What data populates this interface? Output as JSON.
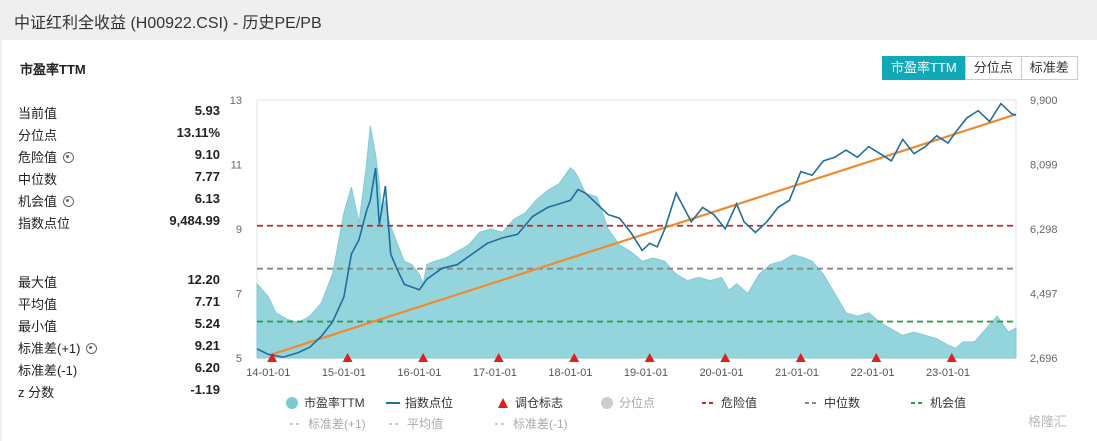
{
  "page": {
    "title": "中证红利全收益 (H00922.CSI) - 历史PE/PB"
  },
  "section": {
    "title": "市盈率TTM"
  },
  "toggle": {
    "pe": "市盈率TTM",
    "percentile": "分位点",
    "std": "标准差"
  },
  "stats_top": [
    {
      "label": "当前值",
      "value": "5.93",
      "gear": false
    },
    {
      "label": "分位点",
      "value": "13.11%",
      "gear": false
    },
    {
      "label": "危险值",
      "value": "9.10",
      "gear": true
    },
    {
      "label": "中位数",
      "value": "7.77",
      "gear": false
    },
    {
      "label": "机会值",
      "value": "6.13",
      "gear": true
    },
    {
      "label": "指数点位",
      "value": "9,484.99",
      "gear": false
    }
  ],
  "stats_bottom": [
    {
      "label": "最大值",
      "value": "12.20",
      "gear": false
    },
    {
      "label": "平均值",
      "value": "7.71",
      "gear": false
    },
    {
      "label": "最小值",
      "value": "5.24",
      "gear": false
    },
    {
      "label": "标准差(+1)",
      "value": "9.21",
      "gear": true
    },
    {
      "label": "标准差(-1)",
      "value": "6.20",
      "gear": false
    },
    {
      "label": "z 分数",
      "value": "-1.19",
      "gear": false
    }
  ],
  "watermark": "格隆汇",
  "chart_data": {
    "type": "area",
    "x_ticks": [
      "14-01-01",
      "15-01-01",
      "16-01-01",
      "17-01-01",
      "18-01-01",
      "19-01-01",
      "20-01-01",
      "21-01-01",
      "22-01-01",
      "23-01-01"
    ],
    "y_left": {
      "ticks": [
        "5",
        "7",
        "9",
        "11",
        "13"
      ],
      "range": [
        5,
        13
      ]
    },
    "y_right": {
      "ticks": [
        "2,696",
        "4,497",
        "6,298",
        "8,099",
        "9,900"
      ],
      "range": [
        2696,
        9900
      ]
    },
    "x_range": [
      2013.85,
      2023.9
    ],
    "lines": {
      "danger": 9.1,
      "median": 7.77,
      "opportunity": 6.13
    },
    "colors": {
      "pe_area": "#8fd3dc",
      "index_line": "#1f6e9e",
      "trend_line": "#f08a30",
      "danger": "#c0282a",
      "median": "#888888",
      "opportunity": "#2e9e4e",
      "marker": "#e02020"
    },
    "pe_series": {
      "name": "市盈率TTM",
      "x": [
        2013.85,
        2014.0,
        2014.1,
        2014.25,
        2014.4,
        2014.55,
        2014.7,
        2014.85,
        2015.0,
        2015.1,
        2015.2,
        2015.3,
        2015.35,
        2015.42,
        2015.47,
        2015.5,
        2015.55,
        2015.6,
        2015.7,
        2015.8,
        2015.9,
        2016.0,
        2016.05,
        2016.1,
        2016.2,
        2016.35,
        2016.5,
        2016.65,
        2016.8,
        2016.95,
        2017.1,
        2017.25,
        2017.4,
        2017.55,
        2017.7,
        2017.85,
        2018.0,
        2018.05,
        2018.1,
        2018.2,
        2018.35,
        2018.5,
        2018.65,
        2018.8,
        2018.95,
        2019.1,
        2019.25,
        2019.4,
        2019.55,
        2019.7,
        2019.85,
        2020.0,
        2020.1,
        2020.2,
        2020.35,
        2020.5,
        2020.65,
        2020.8,
        2020.95,
        2021.1,
        2021.2,
        2021.35,
        2021.5,
        2021.65,
        2021.8,
        2021.95,
        2022.1,
        2022.25,
        2022.4,
        2022.55,
        2022.7,
        2022.85,
        2023.0,
        2023.1,
        2023.2,
        2023.35,
        2023.5,
        2023.65,
        2023.8,
        2023.9
      ],
      "y": [
        7.3,
        6.9,
        6.4,
        6.2,
        6.1,
        6.3,
        6.7,
        7.6,
        9.5,
        10.3,
        9.2,
        11.0,
        12.2,
        11.3,
        10.4,
        9.5,
        9.9,
        9.2,
        8.6,
        8.0,
        7.9,
        7.6,
        7.3,
        7.9,
        8.0,
        8.1,
        8.3,
        8.5,
        8.9,
        9.0,
        8.9,
        9.3,
        9.5,
        9.9,
        10.2,
        10.4,
        10.9,
        10.8,
        10.6,
        10.1,
        10.0,
        9.0,
        8.5,
        8.3,
        8.0,
        8.1,
        8.0,
        7.6,
        7.4,
        7.5,
        7.4,
        7.5,
        7.1,
        7.3,
        7.0,
        7.6,
        7.9,
        8.0,
        8.2,
        8.1,
        8.0,
        7.6,
        7.0,
        6.4,
        6.3,
        6.4,
        6.1,
        5.9,
        5.7,
        5.8,
        5.7,
        5.6,
        5.4,
        5.3,
        5.5,
        5.5,
        5.9,
        6.3,
        5.8,
        5.93
      ]
    },
    "index_series": {
      "name": "指数点位",
      "x": [
        2013.85,
        2014.0,
        2014.2,
        2014.4,
        2014.55,
        2014.7,
        2014.85,
        2015.0,
        2015.1,
        2015.2,
        2015.3,
        2015.35,
        2015.42,
        2015.47,
        2015.55,
        2015.62,
        2015.7,
        2015.8,
        2016.0,
        2016.1,
        2016.3,
        2016.5,
        2016.7,
        2016.9,
        2017.1,
        2017.3,
        2017.5,
        2017.7,
        2017.85,
        2018.0,
        2018.1,
        2018.2,
        2018.35,
        2018.5,
        2018.65,
        2018.8,
        2018.95,
        2019.05,
        2019.15,
        2019.25,
        2019.4,
        2019.5,
        2019.6,
        2019.75,
        2019.9,
        2020.05,
        2020.2,
        2020.3,
        2020.45,
        2020.6,
        2020.75,
        2020.9,
        2021.05,
        2021.2,
        2021.35,
        2021.5,
        2021.65,
        2021.8,
        2021.95,
        2022.1,
        2022.25,
        2022.4,
        2022.55,
        2022.7,
        2022.85,
        2023.0,
        2023.1,
        2023.25,
        2023.4,
        2023.55,
        2023.7,
        2023.85,
        2023.9
      ],
      "y": [
        2950,
        2800,
        2720,
        2850,
        3000,
        3300,
        3700,
        4400,
        5600,
        6000,
        6800,
        7100,
        8000,
        6400,
        7500,
        5600,
        5200,
        4750,
        4600,
        4900,
        5200,
        5300,
        5600,
        5900,
        6050,
        6150,
        6650,
        6900,
        7000,
        7100,
        7400,
        7300,
        7000,
        6700,
        6600,
        6200,
        5700,
        5900,
        5800,
        6300,
        7300,
        6900,
        6500,
        6900,
        6700,
        6300,
        7000,
        6500,
        6200,
        6500,
        6900,
        7100,
        7900,
        7800,
        8200,
        8300,
        8500,
        8300,
        8600,
        8400,
        8200,
        8800,
        8400,
        8600,
        8900,
        8700,
        9000,
        9400,
        9600,
        9300,
        9800,
        9500,
        9485
      ]
    },
    "trend_line": {
      "x": [
        2014.05,
        2023.9
      ],
      "y": [
        2800,
        9500
      ]
    },
    "marker_x": [
      2014.05,
      2015.05,
      2016.05,
      2017.05,
      2018.05,
      2019.05,
      2020.05,
      2021.05,
      2022.05,
      2023.05
    ],
    "legend_row1": [
      "市盈率TTM",
      "指数点位",
      "调仓标志",
      "分位点",
      "危险值",
      "中位数",
      "机会值"
    ],
    "legend_row2": [
      "标准差(+1)",
      "平均值",
      "标准差(-1)"
    ]
  }
}
